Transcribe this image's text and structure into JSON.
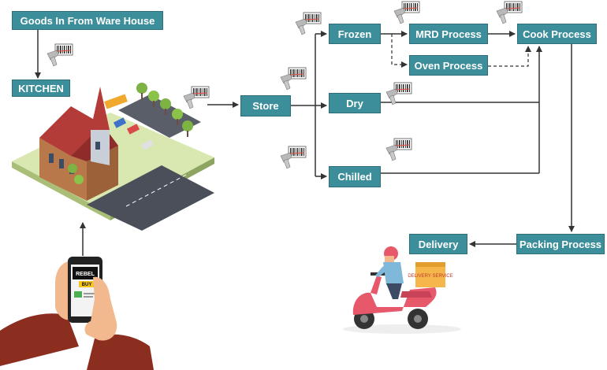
{
  "nodes": {
    "goods_in": "Goods In From Ware House",
    "kitchen": "KITCHEN",
    "store": "Store",
    "frozen": "Frozen",
    "dry": "Dry",
    "chilled": "Chilled",
    "mrd_process": "MRD Process",
    "oven_process": "Oven Process",
    "cook_process": "Cook Process",
    "packing_process": "Packing Process",
    "delivery": "Delivery"
  },
  "phone": {
    "brand": "REBEL",
    "buy_label": "BUY"
  },
  "scooter_box_text": "DELIVERY SERVICE",
  "colors": {
    "node_fill": "#3c8e9a",
    "node_text": "#ffffff",
    "arrow": "#333333",
    "scooter": "#e8586b",
    "delivery_box": "#f5b64b"
  }
}
